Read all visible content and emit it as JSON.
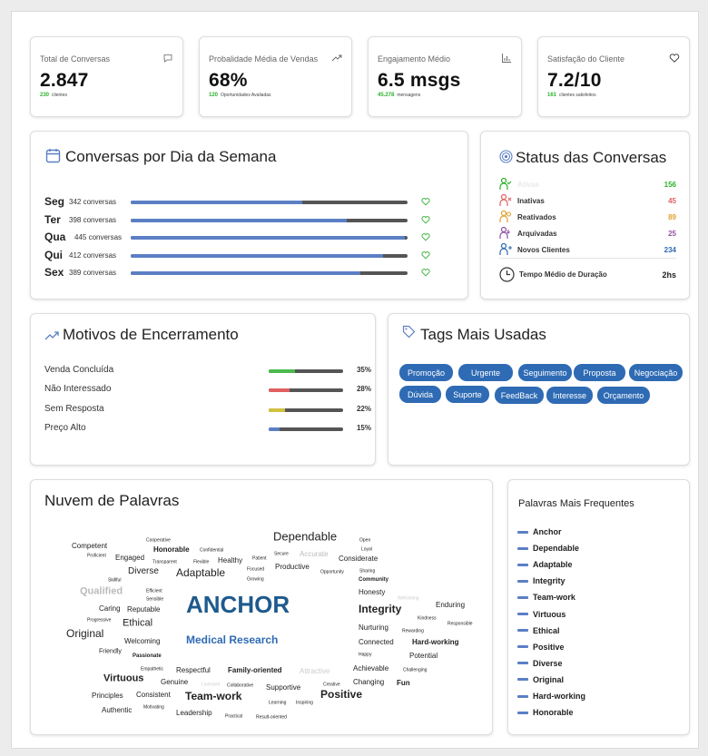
{
  "kpis": [
    {
      "title": "Total de Conversas",
      "icon": "chat-bubble-icon",
      "value": "2.847",
      "sub_num": "230",
      "sub_text": "clientes"
    },
    {
      "title": "Probalidade Média de Vendas",
      "icon": "trending-up-icon",
      "value": "68%",
      "sub_num": "120",
      "sub_text": "Oportunidades Avaliadas"
    },
    {
      "title": "Engajamento Médio",
      "icon": "chart-icon",
      "value": "6.5 msgs",
      "sub_num": "45.278",
      "sub_text": "mensagens"
    },
    {
      "title": "Satisfação do Cliente",
      "icon": "heart-icon",
      "value": "7.2/10",
      "sub_num": "161",
      "sub_text": "clientes satisfeitos"
    }
  ],
  "weekday": {
    "title": "Conversas por Dia da Semana",
    "days": [
      {
        "label": "Seg",
        "count": "342 conversas",
        "fill": 0.62
      },
      {
        "label": "Ter",
        "count": "398 conversas",
        "fill": 0.78
      },
      {
        "label": "Qua",
        "count": "445 conversas",
        "fill": 0.99
      },
      {
        "label": "Qui",
        "count": "412 conversas",
        "fill": 0.91
      },
      {
        "label": "Sex",
        "count": "389 conversas",
        "fill": 0.83
      }
    ]
  },
  "status": {
    "title": "Status das Conversas",
    "rows": [
      {
        "label": "Ativas",
        "value": "156",
        "color": "#2bb12b"
      },
      {
        "label": "Inativas",
        "value": "45",
        "color": "#e06060"
      },
      {
        "label": "Reativados",
        "value": "89",
        "color": "#e0a030"
      },
      {
        "label": "Arquivadas",
        "value": "25",
        "color": "#9050a0"
      },
      {
        "label": "Novos Clientes",
        "value": "234",
        "color": "#2e6bb4"
      }
    ],
    "duration_label": "Tempo Médio de Duração",
    "duration_value": "2hs"
  },
  "motivos": {
    "title": "Motivos de Encerramento",
    "rows": [
      {
        "label": "Venda Concluída",
        "pct": "35%",
        "fill": 0.35,
        "color": "#4cbb4c"
      },
      {
        "label": "Não Interessado",
        "pct": "28%",
        "fill": 0.28,
        "color": "#e06060"
      },
      {
        "label": "Sem Resposta",
        "pct": "22%",
        "fill": 0.22,
        "color": "#d2c040"
      },
      {
        "label": "Preço Alto",
        "pct": "15%",
        "fill": 0.15,
        "color": "#5b7fc4"
      }
    ]
  },
  "tags": {
    "title": "Tags Mais Usadas",
    "items": [
      "Promoção",
      "Urgente",
      "Seguimento",
      "Proposta",
      "Negociação",
      "Dúvida",
      "Suporte",
      "FeedBack",
      "Interesse",
      "Orçamento"
    ]
  },
  "cloud": {
    "title": "Nuvem de Palavras",
    "words": [
      "Competent",
      "Cooperative",
      "Honorable",
      "Dependable",
      "Open",
      "Proficient",
      "Engaged",
      "Confidential",
      "Healthy",
      "Patient",
      "Secure",
      "Accurate",
      "Loyal",
      "Transparent",
      "Flexible",
      "Considerate",
      "Diverse",
      "Adaptable",
      "Productive",
      "Focused",
      "Sharing",
      "Opportunity",
      "Skillful",
      "Growing",
      "Community",
      "Qualified",
      "Efficient",
      "Honesty",
      "Sensible",
      "ANCHOR",
      "Well-being",
      "Caring",
      "Reputable",
      "Integrity",
      "Enduring",
      "Progressive",
      "Kindness",
      "Ethical",
      "Responsible",
      "Nurturing",
      "Rewarding",
      "Original",
      "Welcoming",
      "Medical Research",
      "Connected",
      "Hard-working",
      "Friendly",
      "Passionate",
      "Happy",
      "Potential",
      "Empathetic",
      "Respectful",
      "Family-oriented",
      "Achievable",
      "Challenging",
      "Attractive",
      "Virtuous",
      "Genuine",
      "Licensed",
      "Changing",
      "Fun",
      "Collaborative",
      "Supportive",
      "Creative",
      "Principles",
      "Consistent",
      "Team-work",
      "Positive",
      "Learning",
      "Inspiring",
      "Authentic",
      "Motivating",
      "Leadership",
      "Practical",
      "Result-oriented"
    ]
  },
  "frequent": {
    "title": "Palavras Mais Frequentes",
    "items": [
      "Anchor",
      "Dependable",
      "Adaptable",
      "Integrity",
      "Team-work",
      "Virtuous",
      "Ethical",
      "Positive",
      "Diverse",
      "Original",
      "Hard-working",
      "Honorable"
    ]
  }
}
